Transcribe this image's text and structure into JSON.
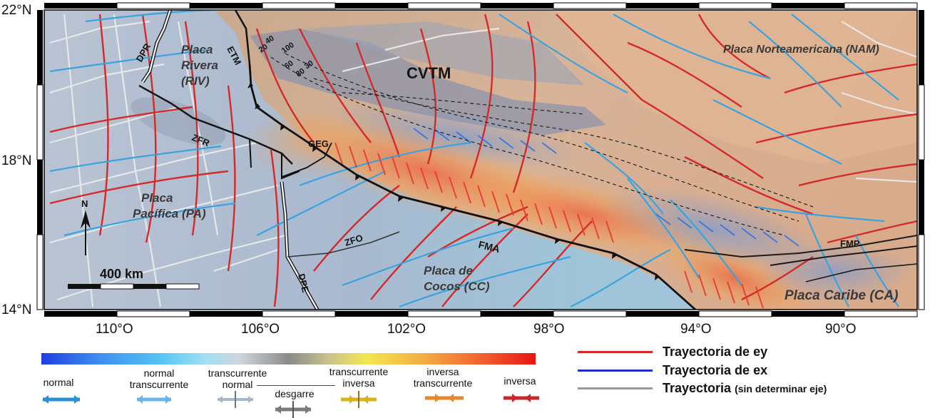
{
  "map": {
    "lat_labels": [
      "22°N",
      "18°N",
      "14°N"
    ],
    "lon_labels": [
      "110°O",
      "106°O",
      "102°O",
      "98°O",
      "94°O",
      "90°O"
    ],
    "plates": {
      "rivera": "Placa\nRivera\n(RIV)",
      "pacifica": "Placa\nPacífica (PA)",
      "norteamericana": "Placa Norteamericana (NAM)",
      "cocos": "Placa de\nCocos (CC)",
      "caribe": "Placa Caribe (CA)"
    },
    "features": {
      "cvtm": "CVTM",
      "etm": "ETM",
      "dpr": "DPR",
      "zfr": "ZFR",
      "geg": "GEG",
      "zfo": "ZFO",
      "fma": "FMA",
      "dpe": "DPE",
      "fmp": "FMP"
    },
    "contours": [
      "20",
      "40",
      "100",
      "30",
      "60",
      "80"
    ],
    "north_label": "N",
    "scale_label": "400 km"
  },
  "legend": {
    "regimes": [
      {
        "label": "normal",
        "color": "#2a8fd6"
      },
      {
        "label": "normal\ntranscurrente",
        "color": "#6ab4ee"
      },
      {
        "label": "transcurrente\nnormal",
        "color": "#a9b6c9"
      },
      {
        "label": "desgarre",
        "color": "#7a7a7a"
      },
      {
        "label": "transcurrente\ninversa",
        "color": "#d8b21a"
      },
      {
        "label": "inversa\ntranscurrente",
        "color": "#e7862a"
      },
      {
        "label": "inversa",
        "color": "#c8282a"
      }
    ],
    "trajectories": [
      {
        "label": "Trayectoria de ey",
        "note": "",
        "color": "#d42a2a"
      },
      {
        "label": "Trayectoria de ex",
        "note": "",
        "color": "#1f2fbf"
      },
      {
        "label": "Trayectoria",
        "note": "(sin determinar eje)",
        "color": "#9a9a9a"
      }
    ]
  }
}
